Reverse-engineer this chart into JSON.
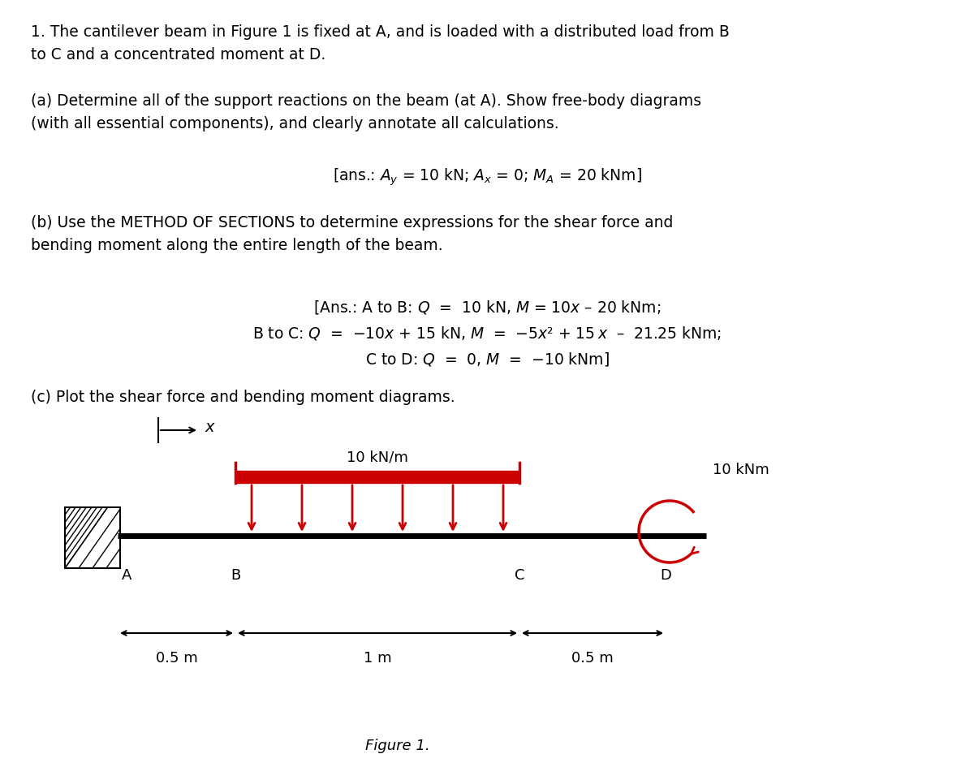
{
  "bg_color": "#ffffff",
  "text_color": "#000000",
  "para1": "1. The cantilever beam in Figure 1 is fixed at A, and is loaded with a distributed load from B\nto C and a concentrated moment at D.",
  "para2a": "(a) Determine all of the support reactions on the beam (at A). Show free-body diagrams\n(with all essential components), and clearly annotate all calculations.",
  "para2a_ans": "[ans.: $A_y$ = 10 kN; $A_x$ = 0; $M_A$ = 20 kNm]",
  "para3b": "(b) Use the METHOD OF SECTIONS to determine expressions for the shear force and\nbending moment along the entire length of the beam.",
  "para3b_ans1": "[Ans.: A to B: $Q$  =  10 kN, $M$ = 10$x$ – 20 kNm;",
  "para3b_ans2": "B to C: $Q$  =  −10$x$ + 15 kN, $M$  =  −5$x$² + 15 $x$  –  21.25 kNm;",
  "para3b_ans3": "C to D: $Q$  =  0, $M$  =  −10 kNm]",
  "para4c": "(c) Plot the shear force and bending moment diagrams.",
  "fig_caption": "Figure 1.",
  "load_color": "#cc0000",
  "dist_load_label": "10 kN/m",
  "moment_label": "10 kNm",
  "dim1": "0.5 m",
  "dim2": "1 m",
  "dim3": "0.5 m",
  "num_load_arrows": 6
}
